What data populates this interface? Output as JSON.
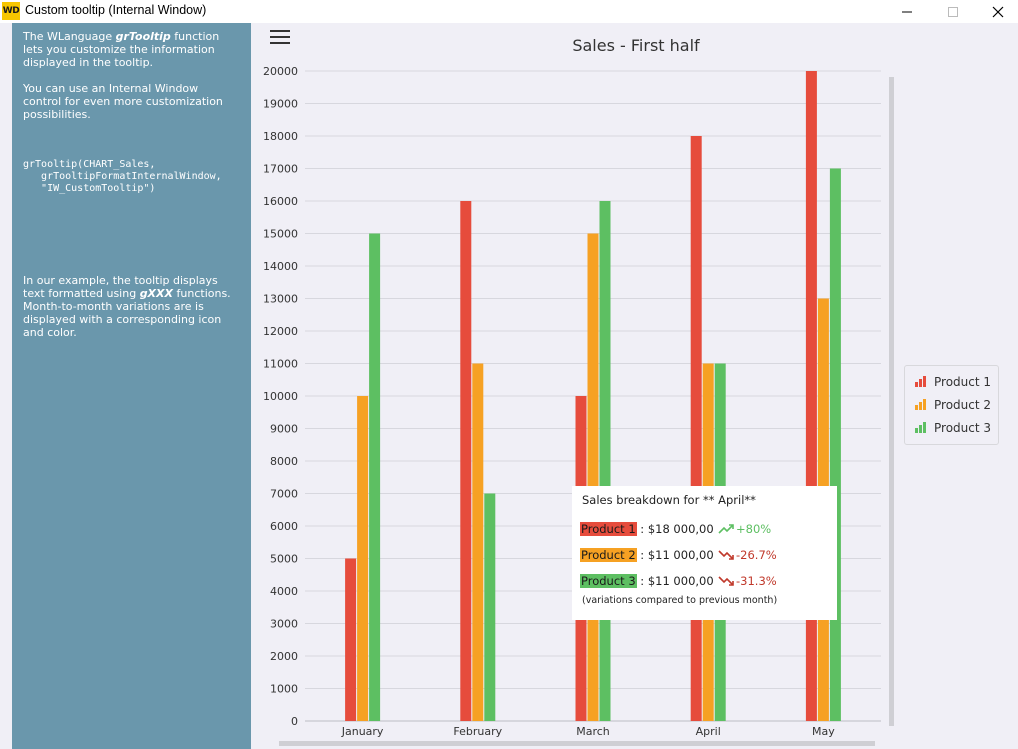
{
  "window": {
    "title": "Custom tooltip (Internal Window)",
    "app_icon": "WD",
    "buttons": [
      "minimize-icon",
      "maximize-icon",
      "close-icon"
    ]
  },
  "sidebar": {
    "bg_color": "#6a97ac",
    "para1_pre": "The WLanguage ",
    "para1_em": "grTooltip",
    "para1_post": " function\nlets you customize the information\ndisplayed in the tooltip.",
    "para2": "You can use an Internal Window\ncontrol for even more customization\npossibilities.",
    "code": "grTooltip(CHART_Sales,\n   grTooltipFormatInternalWindow,\n   \"IW_CustomTooltip\")",
    "para3_pre": "In our example, the tooltip displays\ntext formatted using ",
    "para3_em": "gXXX",
    "para3_post": " functions.\n Month-to-month variations are is\ndisplayed with a corresponding icon\nand color."
  },
  "toolbar": {
    "menu_icon": "hamburger-icon"
  },
  "colors": {
    "product1": "#e64c3c",
    "product2": "#f6a123",
    "product3": "#5dbf62",
    "up": "#5dbf62",
    "down": "#c0392b"
  },
  "chart_data": {
    "type": "bar",
    "title": "Sales - First half",
    "categories": [
      "January",
      "February",
      "March",
      "April",
      "May"
    ],
    "series": [
      {
        "name": "Product 1",
        "values": [
          5000,
          16000,
          10000,
          18000,
          20000
        ]
      },
      {
        "name": "Product 2",
        "values": [
          10000,
          11000,
          15000,
          11000,
          13000
        ]
      },
      {
        "name": "Product 3",
        "values": [
          15000,
          7000,
          16000,
          11000,
          17000
        ]
      }
    ],
    "ylim": [
      0,
      20000
    ],
    "yticks": [
      "0",
      "1000",
      "2000",
      "3000",
      "4000",
      "5000",
      "6000",
      "7000",
      "8000",
      "9000",
      "10000",
      "11000",
      "12000",
      "13000",
      "14000",
      "15000",
      "16000",
      "17000",
      "18000",
      "19000",
      "20000"
    ],
    "grid": true,
    "legend_position": "right"
  },
  "legend": {
    "items": [
      "Product 1",
      "Product 2",
      "Product 3"
    ]
  },
  "tooltip": {
    "title": "Sales breakdown for ** April**",
    "rows": [
      {
        "label": "Product 1",
        "value": " : $18 000,00",
        "variation": "+80%",
        "trend": "up"
      },
      {
        "label": "Product 2",
        "value": " : $11 000,00",
        "variation": "-26.7%",
        "trend": "down"
      },
      {
        "label": "Product 3",
        "value": " : $11 000,00",
        "variation": "-31.3%",
        "trend": "down"
      }
    ],
    "note": "(variations compared to previous month)"
  }
}
